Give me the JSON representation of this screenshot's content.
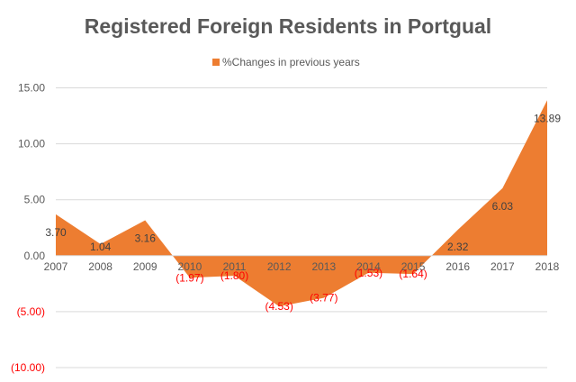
{
  "chart_data": {
    "type": "area",
    "title": "Registered Foreign Residents in Portgual",
    "legend": {
      "label": "%Changes in previous years",
      "position": "top"
    },
    "categories": [
      "2007",
      "2008",
      "2009",
      "2010",
      "2011",
      "2012",
      "2013",
      "2014",
      "2015",
      "2016",
      "2017",
      "2018"
    ],
    "values": [
      3.7,
      1.04,
      3.16,
      -1.97,
      -1.8,
      -4.53,
      -3.77,
      -1.53,
      -1.64,
      2.32,
      6.03,
      13.89
    ],
    "data_labels": [
      "3.70",
      "1.04",
      "3.16",
      "(1.97)",
      "(1.80)",
      "(4.53)",
      "(3.77)",
      "(1.53)",
      "(1.64)",
      "2.32",
      "6.03",
      "13.89"
    ],
    "y_ticks": [
      15,
      10,
      5,
      0,
      -5,
      -10
    ],
    "y_tick_labels": [
      "15.00",
      "10.00",
      "5.00",
      "0.00",
      "(5.00)",
      "(10.00)"
    ],
    "ylim": [
      -10,
      15
    ],
    "xlabel": "",
    "ylabel": "",
    "grid": true,
    "colors": {
      "area": "#ED7D31",
      "positive_label": "#404040",
      "negative_label": "#FF0000",
      "axis_text": "#595959",
      "grid": "#D9D9D9",
      "title": "#595959"
    }
  }
}
